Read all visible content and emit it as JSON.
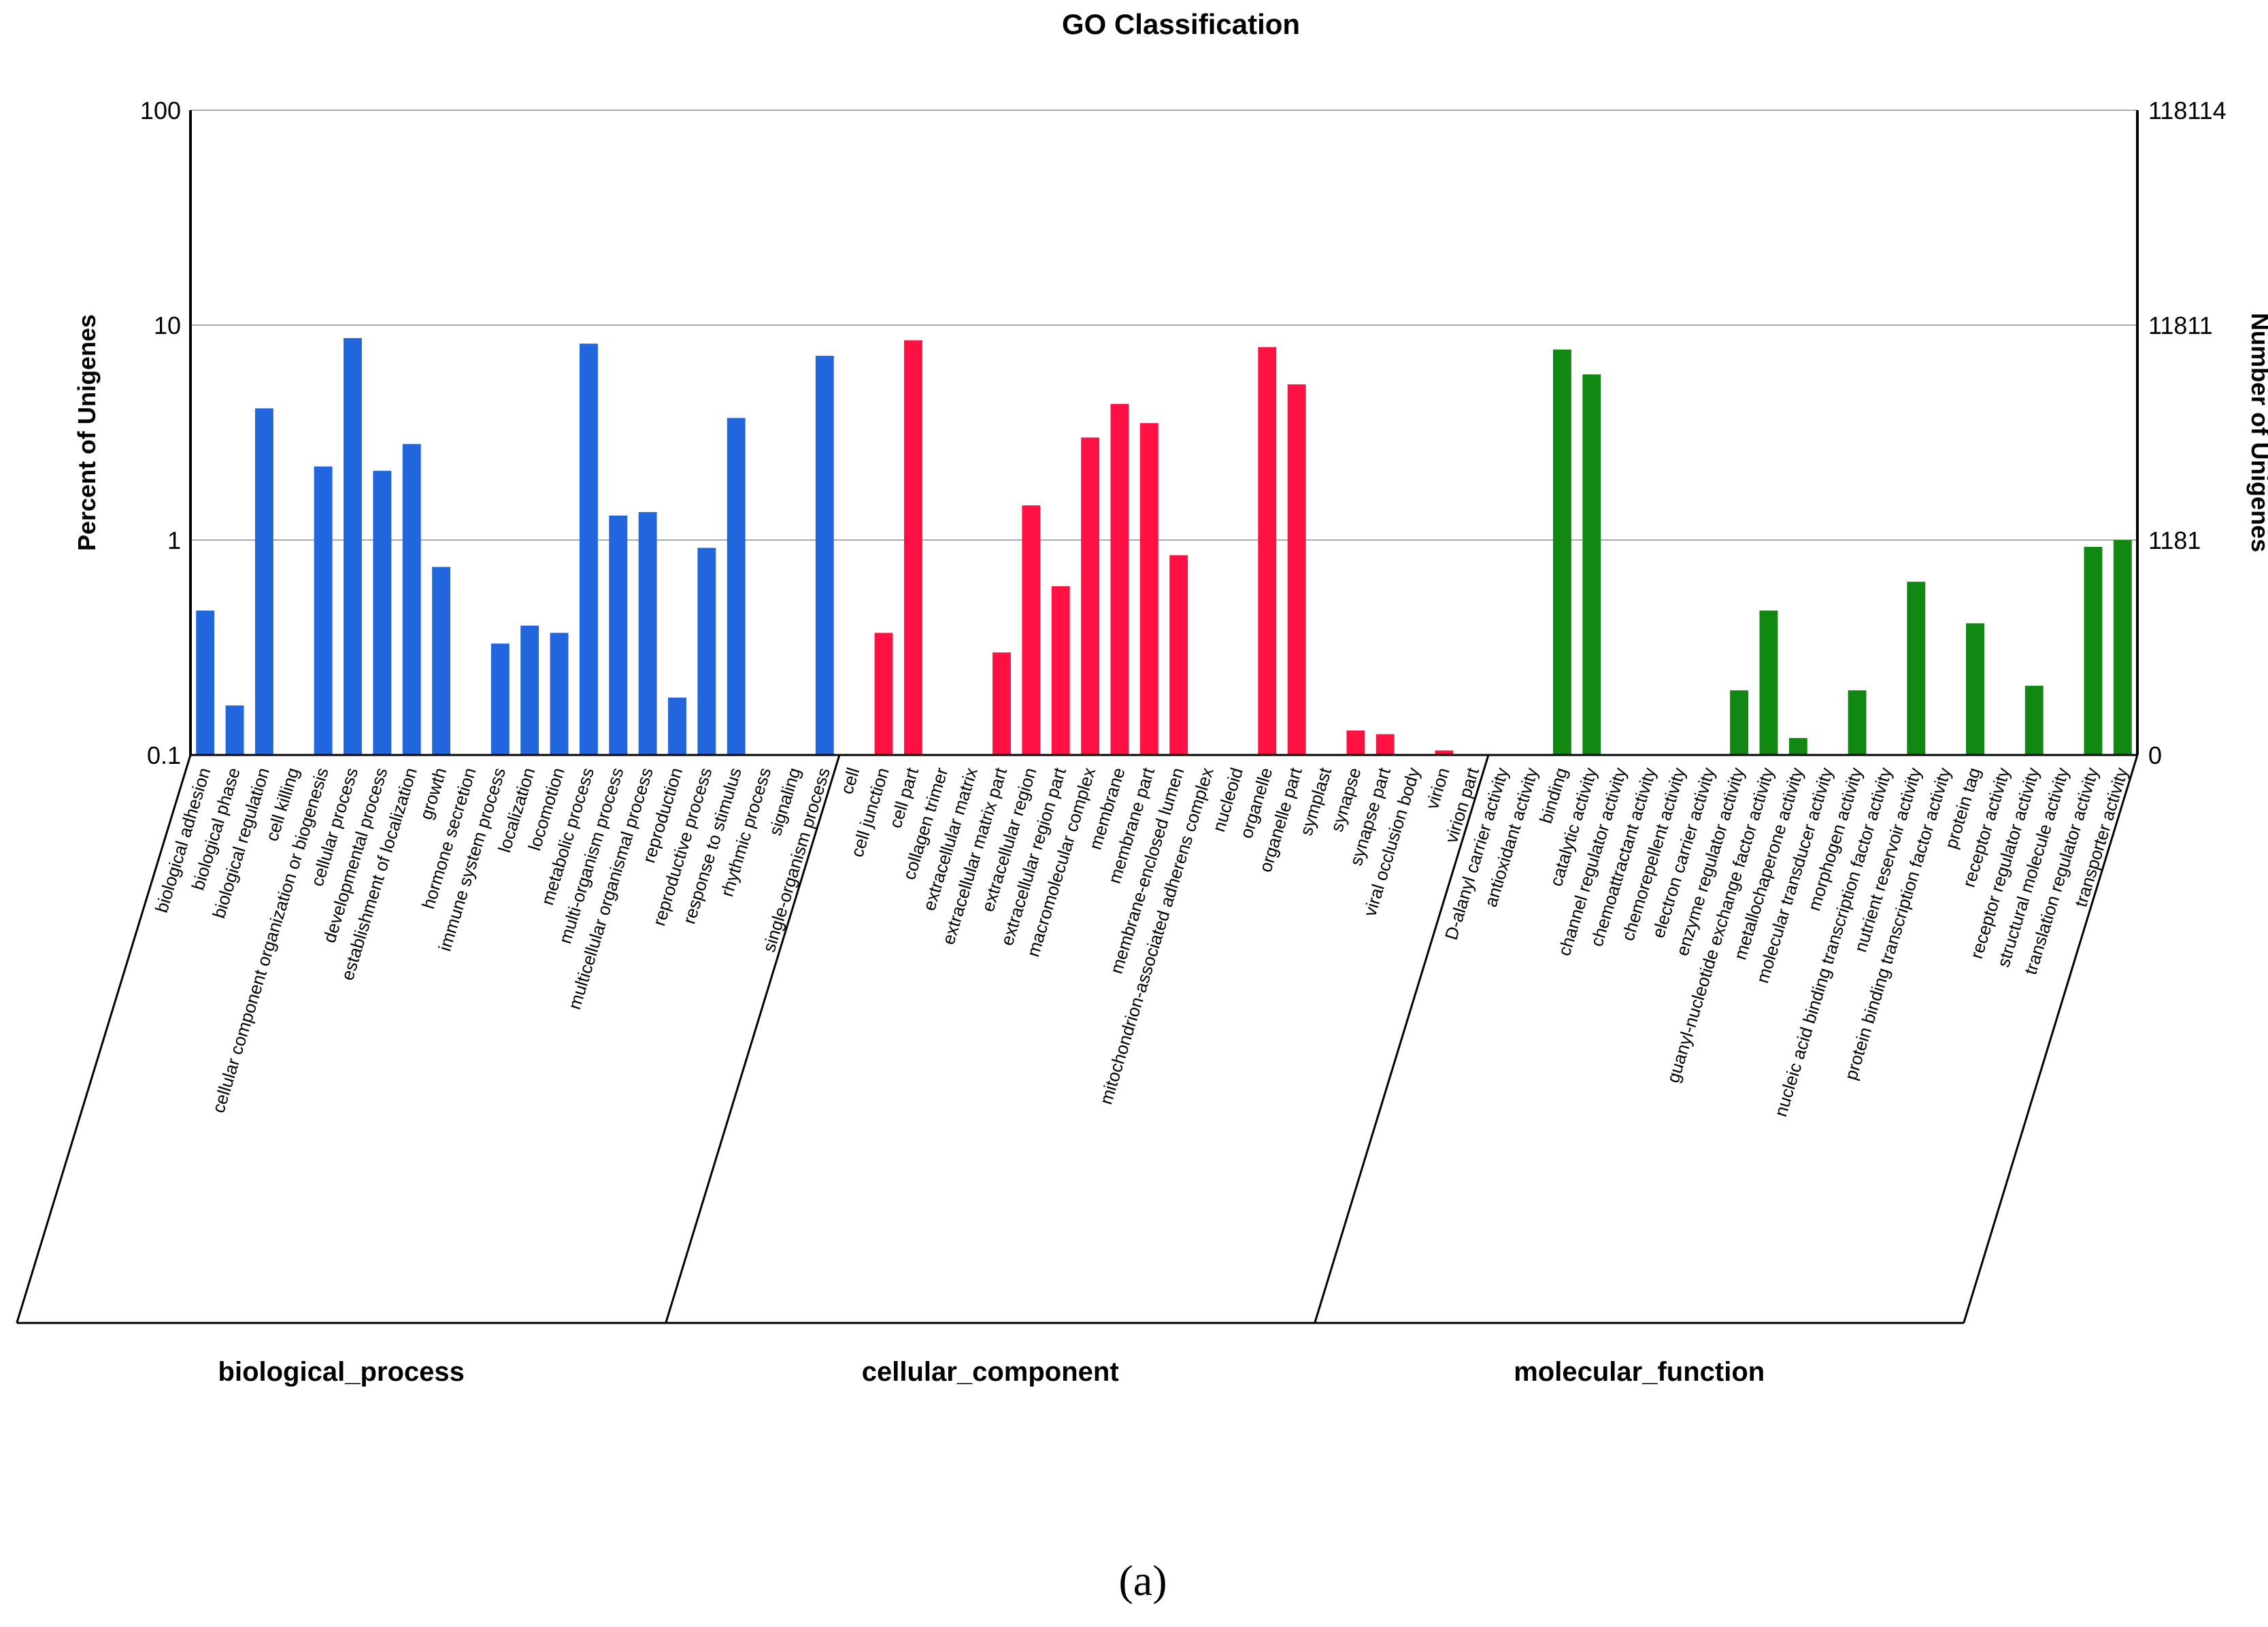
{
  "chart_data": {
    "type": "bar",
    "title": "GO Classification",
    "ylabel_left": "Percent of Unigenes",
    "ylabel_right": "Number of Unigenes",
    "yscale": "log",
    "ylim": [
      0.1,
      100
    ],
    "left_ticks": [
      "100",
      "10",
      "1",
      "0.1"
    ],
    "right_ticks": [
      "118114",
      "11811",
      "1181",
      "0"
    ],
    "caption": "(a)",
    "groups": [
      {
        "name": "biological_process",
        "color": "#2266dd",
        "categories": [
          "biological adhesion",
          "biological phase",
          "biological regulation",
          "cell killing",
          "cellular component organization or biogenesis",
          "cellular process",
          "developmental process",
          "establishment of localization",
          "growth",
          "hormone secretion",
          "immune system process",
          "localization",
          "locomotion",
          "metabolic process",
          "multi-organism process",
          "multicellular organismal process",
          "reproduction",
          "reproductive process",
          "response to stimulus",
          "rhythmic process",
          "signaling",
          "single-organism process"
        ],
        "values": [
          0.47,
          0.17,
          4.1,
          null,
          2.2,
          8.7,
          2.1,
          2.8,
          0.75,
          null,
          0.33,
          0.4,
          0.37,
          8.2,
          1.3,
          1.35,
          0.185,
          0.92,
          3.7,
          null,
          null,
          7.2
        ]
      },
      {
        "name": "cellular_component",
        "color": "#ff1144",
        "categories": [
          "cell",
          "cell junction",
          "cell part",
          "collagen trimer",
          "extracellular matrix",
          "extracellular matrix part",
          "extracellular region",
          "extracellular region part",
          "macromolecular complex",
          "membrane",
          "membrane part",
          "membrane-enclosed lumen",
          "mitochondrion-associated adherens complex",
          "nucleoid",
          "organelle",
          "organelle part",
          "symplast",
          "synapse",
          "synapse part",
          "viral occlusion body",
          "virion",
          "virion part"
        ],
        "values": [
          null,
          0.37,
          8.5,
          null,
          null,
          0.3,
          1.45,
          0.61,
          3.0,
          4.3,
          3.5,
          0.85,
          null,
          null,
          7.9,
          5.3,
          null,
          0.13,
          0.125,
          null,
          0.105,
          null
        ]
      },
      {
        "name": "molecular_function",
        "color": "#118811",
        "categories": [
          "D-alanyl carrier activity",
          "antioxidant activity",
          "binding",
          "catalytic activity",
          "channel regulator activity",
          "chemoattractant activity",
          "chemorepellent activity",
          "electron carrier activity",
          "enzyme regulator activity",
          "guanyl-nucleotide exchange factor activity",
          "metallochaperone activity",
          "molecular transducer activity",
          "morphogen activity",
          "nucleic acid binding transcription factor activity",
          "nutrient reservoir activity",
          "protein binding transcription factor activity",
          "protein tag",
          "receptor activity",
          "receptor regulator activity",
          "structural molecule activity",
          "translation regulator activity",
          "transporter activity"
        ],
        "values": [
          null,
          null,
          7.7,
          5.9,
          null,
          null,
          null,
          null,
          0.2,
          0.47,
          0.12,
          null,
          0.2,
          null,
          0.64,
          null,
          0.41,
          null,
          0.21,
          null,
          0.93,
          1.0
        ]
      }
    ]
  }
}
